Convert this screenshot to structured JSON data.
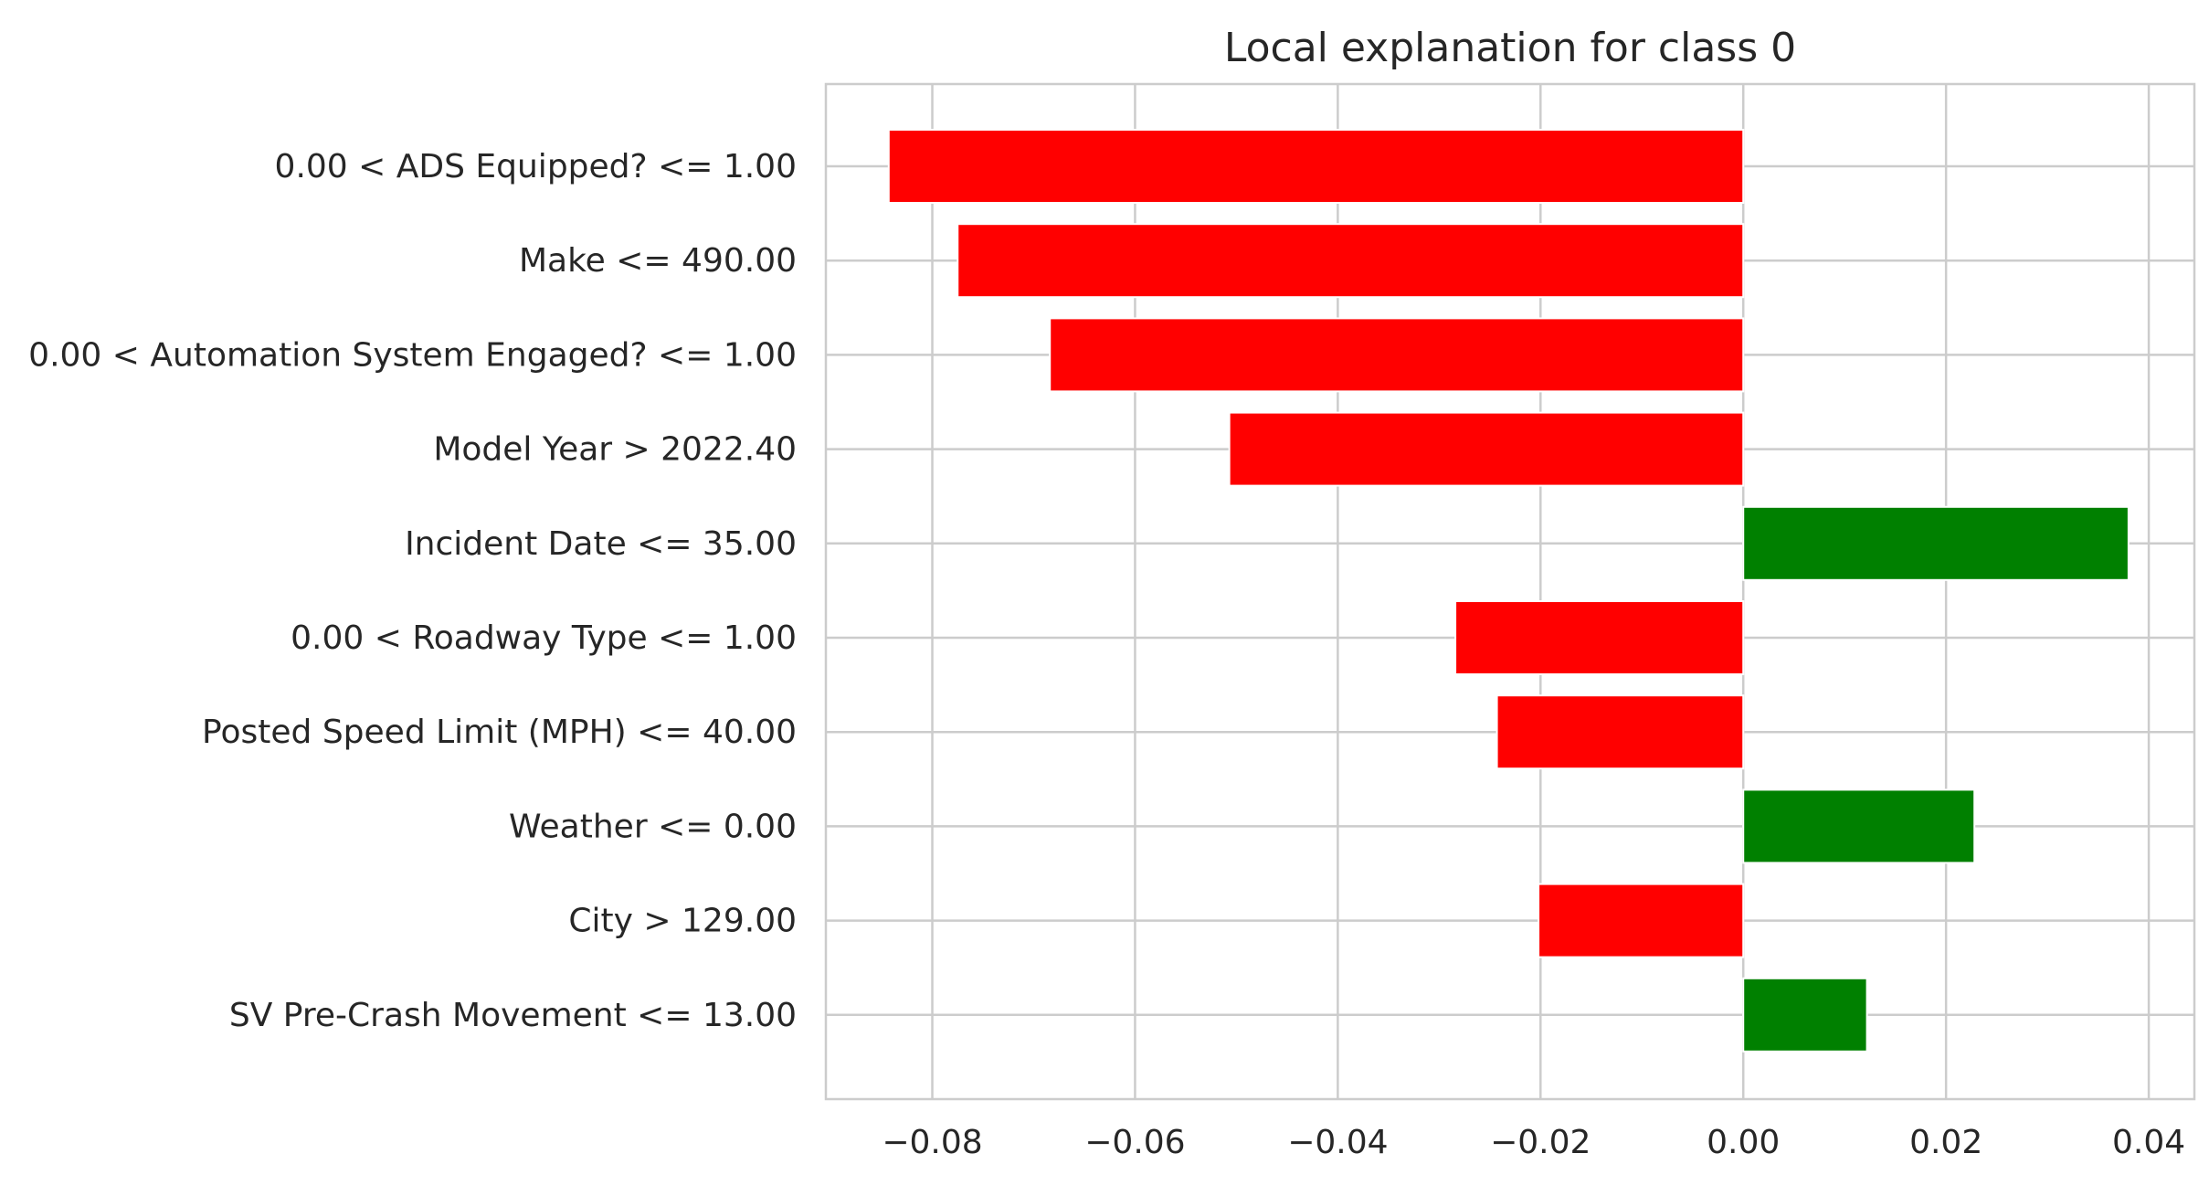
{
  "chart_data": {
    "type": "bar",
    "orientation": "horizontal",
    "title": "Local explanation for class 0",
    "xlabel": "",
    "ylabel": "",
    "xlim": [
      -0.0905,
      0.0445
    ],
    "grid": true,
    "legend": "none",
    "categories": [
      "0.00 < ADS Equipped? <= 1.00",
      "Make <= 490.00",
      "0.00 < Automation System Engaged? <= 1.00",
      "Model Year > 2022.40",
      "Incident Date <= 35.00",
      "0.00 < Roadway Type <= 1.00",
      "Posted Speed Limit (MPH) <= 40.00",
      "Weather <= 0.00",
      "City > 129.00",
      "SV Pre-Crash Movement <= 13.00"
    ],
    "values": [
      -0.0843,
      -0.0775,
      -0.0684,
      -0.0507,
      0.038,
      -0.0284,
      -0.0243,
      0.0228,
      -0.0202,
      0.0122
    ],
    "x_ticks": [
      -0.08,
      -0.06,
      -0.04,
      -0.02,
      0.0,
      0.02,
      0.04
    ],
    "x_tick_labels": [
      "−0.08",
      "−0.06",
      "−0.04",
      "−0.02",
      "0.00",
      "0.02",
      "0.04"
    ],
    "colors": {
      "negative": "#ff0000",
      "positive": "#008000",
      "grid": "#cccccc",
      "text": "#262626",
      "background": "#ffffff"
    }
  }
}
